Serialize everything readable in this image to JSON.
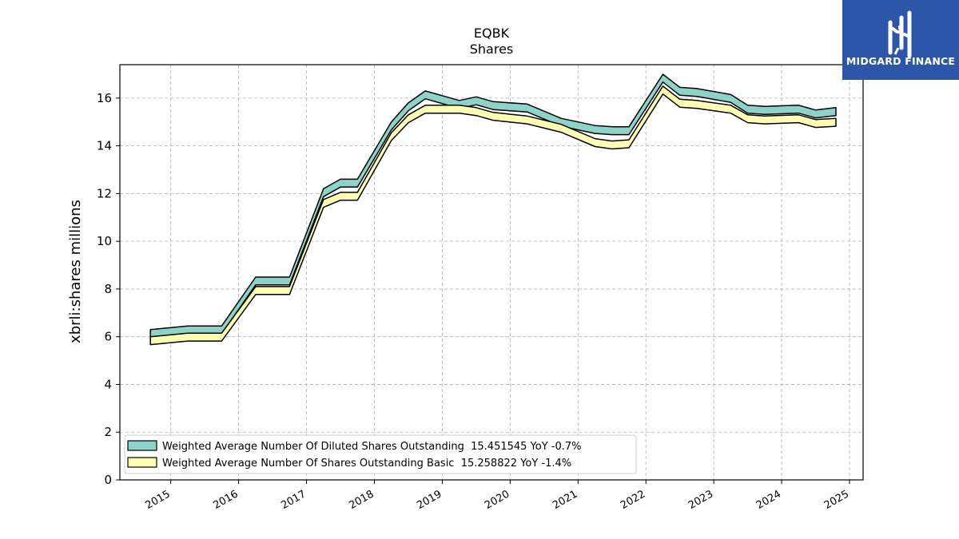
{
  "chart_data": {
    "type": "area",
    "title": "EQBK",
    "subtitle": "Shares",
    "xlabel": "",
    "ylabel": "xbrli:shares millions",
    "ylim": [
      0,
      17.4
    ],
    "yticks": [
      "0",
      "2",
      "4",
      "6",
      "8",
      "10",
      "12",
      "14",
      "16"
    ],
    "xlim": [
      2014.25,
      2025.2
    ],
    "xticks": [
      "2015",
      "2016",
      "2017",
      "2018",
      "2019",
      "2020",
      "2021",
      "2022",
      "2023",
      "2024",
      "2025"
    ],
    "grid": true,
    "legend_position": "lower-left",
    "x": [
      2014.7,
      2015.25,
      2015.75,
      2016.25,
      2016.75,
      2017.25,
      2017.5,
      2017.75,
      2018.25,
      2018.5,
      2018.75,
      2019.25,
      2019.5,
      2019.75,
      2020.25,
      2020.75,
      2021.25,
      2021.5,
      2021.75,
      2022.25,
      2022.5,
      2022.75,
      2023.25,
      2023.5,
      2023.75,
      2024.25,
      2024.5,
      2024.8
    ],
    "series": [
      {
        "name": "Weighted Average Number Of Diluted Shares Outstanding",
        "legend": "Weighted Average Number Of Diluted Shares Outstanding  15.451545 YoY -0.7%",
        "color": "#8dd3c7",
        "values": [
          6.3,
          6.45,
          6.45,
          8.5,
          8.5,
          12.2,
          12.6,
          12.6,
          15.0,
          15.8,
          16.3,
          15.9,
          16.05,
          15.85,
          15.75,
          15.15,
          14.85,
          14.8,
          14.8,
          17.0,
          16.45,
          16.4,
          16.15,
          15.7,
          15.65,
          15.7,
          15.5,
          15.6
        ]
      },
      {
        "name": "Weighted Average Number Of Shares Outstanding Basic",
        "legend": "Weighted Average Number Of Shares Outstanding Basic  15.258822 YoY -1.4%",
        "color": "#ffffb3",
        "values": [
          6.0,
          6.15,
          6.15,
          8.1,
          8.1,
          11.75,
          12.05,
          12.05,
          14.55,
          15.3,
          15.7,
          15.7,
          15.6,
          15.4,
          15.25,
          14.9,
          14.3,
          14.2,
          14.25,
          16.5,
          15.95,
          15.9,
          15.7,
          15.3,
          15.25,
          15.3,
          15.1,
          15.15
        ]
      }
    ]
  },
  "logo": {
    "text": "MIDGARD FINANCE"
  }
}
